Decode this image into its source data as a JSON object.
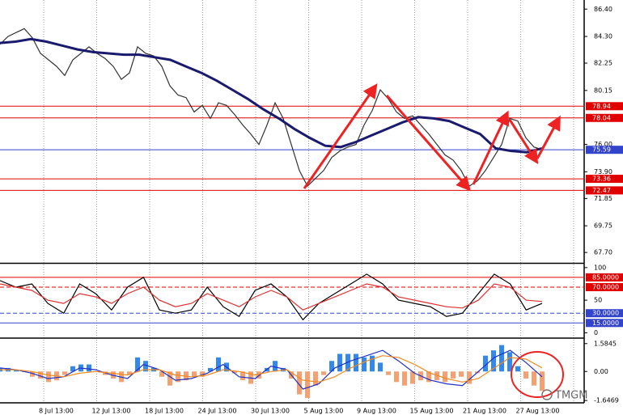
{
  "chart_data": [
    {
      "type": "line",
      "ylim": [
        66.9,
        87.1
      ],
      "yticks": [
        {
          "value": 86.4,
          "label": "86.40"
        },
        {
          "value": 84.3,
          "label": "84.30"
        },
        {
          "value": 82.25,
          "label": "82.25"
        },
        {
          "value": 80.15,
          "label": "80.15"
        },
        {
          "value": 76.0,
          "label": "76.00"
        },
        {
          "value": 73.9,
          "label": "73.90"
        },
        {
          "value": 71.85,
          "label": "71.85"
        },
        {
          "value": 69.75,
          "label": "69.75"
        },
        {
          "value": 67.7,
          "label": "67.70"
        }
      ],
      "levels": [
        {
          "value": 78.94,
          "color": "#e00000"
        },
        {
          "value": 78.04,
          "color": "#e00000"
        },
        {
          "value": 75.59,
          "color": "#3344cc"
        },
        {
          "value": 73.36,
          "color": "#e00000"
        },
        {
          "value": 72.47,
          "color": "#e00000"
        }
      ],
      "series": [
        {
          "color": "#333333",
          "values": [
            83.7,
            84.3,
            84.6,
            84.9,
            84.2,
            83.0,
            82.5,
            82.0,
            81.3,
            82.5,
            83.0,
            83.5,
            83.0,
            82.6,
            82.0,
            81.0,
            81.5,
            83.5,
            83.0,
            82.8,
            82.0,
            80.5,
            79.8,
            79.6,
            78.5,
            79.0,
            78.0,
            79.2,
            79.0,
            78.3,
            77.5,
            76.8,
            76.0,
            77.5,
            79.2,
            78.0,
            76.0,
            74.0,
            72.8,
            73.4,
            74.0,
            75.0,
            75.5,
            75.8,
            76.0,
            77.5,
            78.6,
            80.2,
            79.5,
            78.5,
            78.0,
            78.2,
            77.5,
            76.8,
            76.0,
            75.2,
            74.8,
            74.0,
            72.8,
            73.2,
            74.0,
            75.0,
            76.0,
            78.0,
            77.8,
            76.5,
            75.8,
            75.6
          ]
        },
        {
          "color": "#1a1a6e",
          "values": [
            83.8,
            83.9,
            84.1,
            83.9,
            83.6,
            83.3,
            83.1,
            83.0,
            82.9,
            82.9,
            82.7,
            82.5,
            82.0,
            81.5,
            80.9,
            80.2,
            79.5,
            78.7,
            78.0,
            77.2,
            76.5,
            75.9,
            75.8,
            76.2,
            76.7,
            77.2,
            77.7,
            78.1,
            78.0,
            77.8,
            77.3,
            76.8,
            75.7,
            75.5,
            75.4,
            75.7
          ]
        }
      ]
    },
    {
      "type": "line",
      "ylim": [
        -7,
        106
      ],
      "yticks": [
        100,
        50,
        0
      ],
      "levels": [
        {
          "value": 85,
          "label": "85.0000",
          "color": "#e00000"
        },
        {
          "value": 70,
          "label": "70.0000",
          "color": "#e00000",
          "style": "dashed"
        },
        {
          "value": 30,
          "label": "30.0000",
          "color": "#3344cc",
          "style": "dashed"
        },
        {
          "value": 15,
          "label": "15.0000",
          "color": "#3344cc"
        }
      ],
      "series": [
        {
          "color": "#000000",
          "values": [
            80,
            70,
            75,
            45,
            30,
            75,
            60,
            35,
            70,
            85,
            35,
            30,
            35,
            70,
            40,
            25,
            65,
            75,
            55,
            20,
            45,
            60,
            75,
            90,
            75,
            50,
            45,
            40,
            25,
            30,
            60,
            90,
            75,
            35,
            45
          ]
        },
        {
          "color": "#e03030",
          "values": [
            75,
            70,
            65,
            50,
            45,
            60,
            55,
            45,
            60,
            70,
            50,
            40,
            45,
            60,
            50,
            40,
            55,
            65,
            55,
            35,
            45,
            55,
            65,
            75,
            70,
            55,
            50,
            45,
            40,
            38,
            50,
            75,
            70,
            50,
            48
          ]
        }
      ]
    },
    {
      "type": "bar",
      "ylim": [
        -1.78,
        1.85
      ],
      "yticks": [
        1.5845,
        {
          "value": 0,
          "label": "0.00"
        },
        -1.6469
      ],
      "color_up": "#3388ee",
      "color_down": "#f5a070",
      "values": [
        0.2,
        0.2,
        0.1,
        0.0,
        -0.3,
        -0.4,
        -0.6,
        -0.5,
        -0.2,
        0.3,
        0.4,
        0.4,
        0.0,
        -0.2,
        -0.4,
        -0.6,
        -0.2,
        0.8,
        0.6,
        0.2,
        -0.3,
        -0.8,
        -0.6,
        -0.5,
        -0.3,
        -0.3,
        0.2,
        0.8,
        0.5,
        -0.1,
        -0.5,
        -0.7,
        -0.4,
        0.2,
        0.6,
        0.2,
        -0.4,
        -1.3,
        -1.5,
        -0.8,
        -0.2,
        0.6,
        1.0,
        1.0,
        1.0,
        0.8,
        0.9,
        0.5,
        -0.2,
        -0.6,
        -0.8,
        -0.7,
        -0.5,
        -0.6,
        -0.5,
        -0.6,
        -0.4,
        -0.3,
        -0.7,
        -0.1,
        0.9,
        1.2,
        1.5,
        1.1,
        0.3,
        -0.4,
        -0.8,
        -1.1
      ],
      "series": [
        {
          "color": "#1f2fcc",
          "values": [
            0.2,
            0.1,
            -0.1,
            -0.4,
            -0.3,
            0.2,
            0.1,
            -0.2,
            -0.4,
            0.4,
            0.1,
            -0.5,
            -0.4,
            -0.1,
            0.4,
            -0.3,
            -0.4,
            0.3,
            0.1,
            -1.0,
            -0.7,
            0.2,
            0.6,
            0.9,
            1.2,
            0.6,
            -0.1,
            -0.5,
            -0.7,
            -0.8,
            0.0,
            0.8,
            1.2,
            0.5,
            -0.3
          ]
        },
        {
          "color": "#f08a20",
          "values": [
            0.1,
            0.1,
            0.0,
            -0.2,
            -0.3,
            -0.1,
            0.0,
            -0.1,
            -0.2,
            0.1,
            0.1,
            -0.2,
            -0.3,
            -0.2,
            0.1,
            0.0,
            -0.2,
            0.0,
            0.1,
            -0.5,
            -0.6,
            -0.3,
            0.2,
            0.6,
            0.9,
            0.8,
            0.4,
            -0.1,
            -0.4,
            -0.6,
            -0.4,
            0.2,
            0.8,
            0.7,
            0.2
          ]
        }
      ],
      "x_labels": [
        "8 Jul 13:00",
        "12 Jul 13:00",
        "18 Jul 13:00",
        "24 Jul 13:00",
        "30 Jul 13:00",
        "5 Aug 13:00",
        "9 Aug 13:00",
        "15 Aug 13:00",
        "21 Aug 13:00",
        "27 Aug 13:00"
      ]
    },
    {
      "type": "watermark",
      "text": "TMGM"
    }
  ]
}
